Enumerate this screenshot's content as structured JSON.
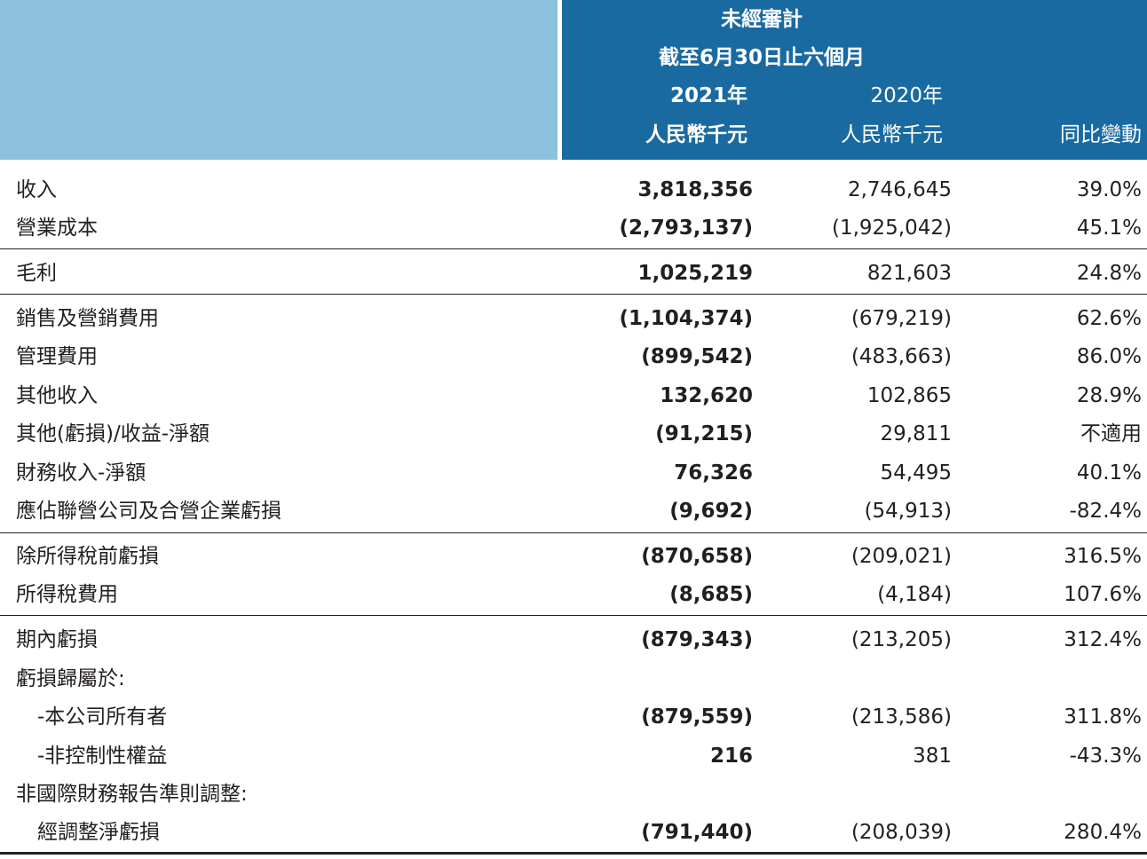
{
  "header": {
    "title": "未經審計",
    "period": "截至6月30日止六個月",
    "year_2021": "2021年",
    "year_2020": "2020年",
    "unit_2021": "人民幣千元",
    "unit_2020": "人民幣千元",
    "change": "同比變動"
  },
  "rows": [
    {
      "label": "收入",
      "v2021": "3,818,356",
      "v2020": "2,746,645",
      "chg": "39.0%"
    },
    {
      "label": "營業成本",
      "v2021": "(2,793,137)",
      "v2020": "(1,925,042)",
      "chg": "45.1%"
    },
    {
      "label": "毛利",
      "v2021": "1,025,219",
      "v2020": "821,603",
      "chg": "24.8%"
    },
    {
      "label": "銷售及營銷費用",
      "v2021": "(1,104,374)",
      "v2020": "(679,219)",
      "chg": "62.6%"
    },
    {
      "label": "管理費用",
      "v2021": "(899,542)",
      "v2020": "(483,663)",
      "chg": "86.0%"
    },
    {
      "label": "其他收入",
      "v2021": "132,620",
      "v2020": "102,865",
      "chg": "28.9%"
    },
    {
      "label": "其他(虧損)/收益-淨額",
      "v2021": "(91,215)",
      "v2020": "29,811",
      "chg": "不適用"
    },
    {
      "label": "財務收入-淨額",
      "v2021": "76,326",
      "v2020": "54,495",
      "chg": "40.1%"
    },
    {
      "label": "應佔聯營公司及合營企業虧損",
      "v2021": "(9,692)",
      "v2020": "(54,913)",
      "chg": "-82.4%"
    },
    {
      "label": "除所得稅前虧損",
      "v2021": "(870,658)",
      "v2020": "(209,021)",
      "chg": "316.5%"
    },
    {
      "label": "所得稅費用",
      "v2021": "(8,685)",
      "v2020": "(4,184)",
      "chg": "107.6%"
    },
    {
      "label": "期內虧損",
      "v2021": "(879,343)",
      "v2020": "(213,205)",
      "chg": "312.4%"
    },
    {
      "label": "虧損歸屬於:"
    },
    {
      "label": "-本公司所有者",
      "v2021": "(879,559)",
      "v2020": "(213,586)",
      "chg": "311.8%"
    },
    {
      "label": "-非控制性權益",
      "v2021": "216",
      "v2020": "381",
      "chg": "-43.3%"
    },
    {
      "label": "非國際財務報告準則調整:"
    },
    {
      "label": "經調整淨虧損",
      "v2021": "(791,440)",
      "v2020": "(208,039)",
      "chg": "280.4%"
    }
  ]
}
